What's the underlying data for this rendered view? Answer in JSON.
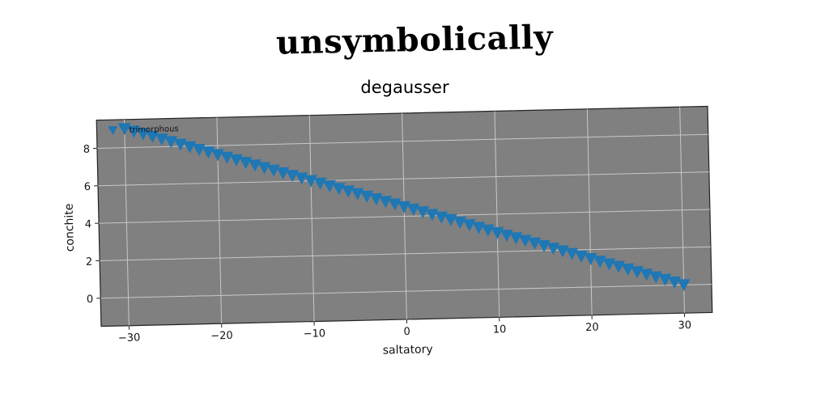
{
  "supertitle": "unsymbolically",
  "chart_data": {
    "type": "scatter",
    "title": "degausser",
    "xlabel": "saltatory",
    "ylabel": "conchite",
    "xlim": [
      -33,
      33
    ],
    "ylim": [
      -1.5,
      9.5
    ],
    "xticks": [
      -30,
      -20,
      -10,
      0,
      10,
      20,
      30
    ],
    "yticks": [
      0,
      2,
      4,
      6,
      8
    ],
    "xtick_labels": [
      "−30",
      "−20",
      "−10",
      "0",
      "10",
      "20",
      "30"
    ],
    "ytick_labels": [
      "0",
      "2",
      "4",
      "6",
      "8"
    ],
    "grid": true,
    "legend_position": "upper-left",
    "marker": "triangle-down",
    "background_color": "#808080",
    "series": [
      {
        "name": "trimorphous",
        "color": "#1f77b4",
        "x": [
          -30.0,
          -29.0,
          -28.0,
          -27.0,
          -26.0,
          -25.0,
          -24.0,
          -23.0,
          -22.0,
          -21.0,
          -20.0,
          -19.0,
          -18.0,
          -17.0,
          -16.0,
          -15.0,
          -14.0,
          -13.0,
          -12.0,
          -11.0,
          -10.0,
          -9.0,
          -8.0,
          -7.0,
          -6.0,
          -5.0,
          -4.0,
          -3.0,
          -2.0,
          -1.0,
          0.0,
          1.0,
          2.0,
          3.0,
          4.0,
          5.0,
          6.0,
          7.0,
          8.0,
          9.0,
          10.0,
          11.0,
          12.0,
          13.0,
          14.0,
          15.0,
          16.0,
          17.0,
          18.0,
          19.0,
          20.0,
          21.0,
          22.0,
          23.0,
          24.0,
          25.0,
          26.0,
          27.0,
          28.0,
          29.0,
          30.0
        ],
        "y": [
          9.05,
          8.9,
          8.75,
          8.6,
          8.45,
          8.3,
          8.15,
          8.0,
          7.85,
          7.7,
          7.55,
          7.4,
          7.25,
          7.1,
          6.95,
          6.8,
          6.65,
          6.5,
          6.35,
          6.2,
          6.05,
          5.9,
          5.75,
          5.6,
          5.45,
          5.3,
          5.15,
          5.0,
          4.85,
          4.7,
          4.55,
          4.4,
          4.25,
          4.1,
          3.95,
          3.8,
          3.65,
          3.5,
          3.35,
          3.2,
          3.05,
          2.9,
          2.75,
          2.6,
          2.45,
          2.3,
          2.15,
          2.0,
          1.85,
          1.7,
          1.55,
          1.4,
          1.25,
          1.1,
          0.95,
          0.8,
          0.65,
          0.5,
          0.35,
          0.2,
          0.05
        ]
      }
    ]
  }
}
